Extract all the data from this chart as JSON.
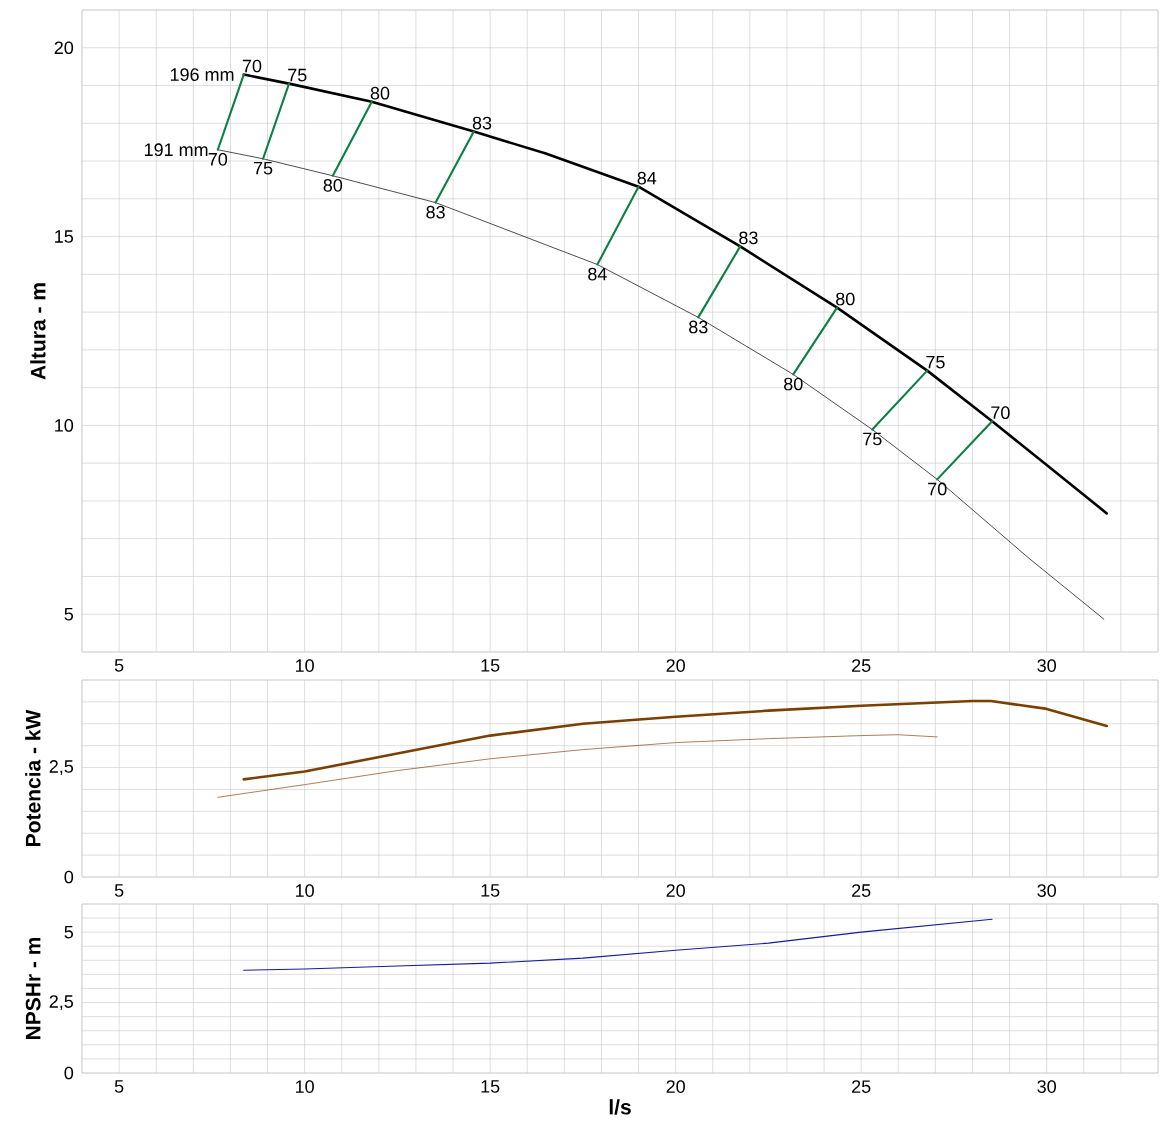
{
  "chart_data": [
    {
      "type": "line",
      "ylabel": "Altura - m",
      "grid": true,
      "xlim": [
        4,
        33
      ],
      "ylim": [
        4,
        21
      ],
      "xticks": [
        {
          "value": 4,
          "label": null
        },
        5,
        {
          "value": 6,
          "label": null
        },
        {
          "value": 7,
          "label": null
        },
        {
          "value": 8,
          "label": null
        },
        {
          "value": 9,
          "label": null
        },
        10,
        {
          "value": 11,
          "label": null
        },
        {
          "value": 12,
          "label": null
        },
        {
          "value": 13,
          "label": null
        },
        {
          "value": 14,
          "label": null
        },
        15,
        {
          "value": 16,
          "label": null
        },
        {
          "value": 17,
          "label": null
        },
        {
          "value": 18,
          "label": null
        },
        {
          "value": 19,
          "label": null
        },
        20,
        {
          "value": 21,
          "label": null
        },
        {
          "value": 22,
          "label": null
        },
        {
          "value": 23,
          "label": null
        },
        {
          "value": 24,
          "label": null
        },
        25,
        {
          "value": 26,
          "label": null
        },
        {
          "value": 27,
          "label": null
        },
        {
          "value": 28,
          "label": null
        },
        {
          "value": 29,
          "label": null
        },
        30,
        {
          "value": 31,
          "label": null
        },
        {
          "value": 32,
          "label": null
        },
        {
          "value": 33,
          "label": null
        }
      ],
      "yticks": [
        {
          "value": 4,
          "label": null
        },
        5,
        {
          "value": 6,
          "label": null
        },
        {
          "value": 7,
          "label": null
        },
        {
          "value": 8,
          "label": null
        },
        {
          "value": 9,
          "label": null
        },
        10,
        {
          "value": 11,
          "label": null
        },
        {
          "value": 12,
          "label": null
        },
        {
          "value": 13,
          "label": null
        },
        {
          "value": 14,
          "label": null
        },
        15,
        {
          "value": 16,
          "label": null
        },
        {
          "value": 17,
          "label": null
        },
        {
          "value": 18,
          "label": null
        },
        {
          "value": 19,
          "label": null
        },
        20,
        {
          "value": 21,
          "label": null
        }
      ],
      "series": [
        {
          "name": "196 mm",
          "color": "#000000",
          "x": [
            8.36,
            9.58,
            11.81,
            14.56,
            16.5,
            19.0,
            21.74,
            24.35,
            26.78,
            28.53,
            30.0,
            31.62
          ],
          "values": [
            19.29,
            19.05,
            18.57,
            17.78,
            17.2,
            16.32,
            14.74,
            13.12,
            11.45,
            10.11,
            8.95,
            7.67
          ]
        },
        {
          "name": "191 mm",
          "color": "#000000",
          "x": [
            7.66,
            8.88,
            10.76,
            13.53,
            17.89,
            20.61,
            23.17,
            25.3,
            27.05,
            29.5,
            31.54
          ],
          "values": [
            17.3,
            17.06,
            16.61,
            15.9,
            14.26,
            12.86,
            11.35,
            9.89,
            8.57,
            6.5,
            4.87
          ]
        },
        {
          "color": "#0a8043",
          "x": [
            7.66,
            8.36
          ],
          "values": [
            17.3,
            19.29
          ]
        },
        {
          "color": "#0a8043",
          "x": [
            8.88,
            9.58
          ],
          "values": [
            17.06,
            19.05
          ]
        },
        {
          "color": "#0a8043",
          "x": [
            10.76,
            11.81
          ],
          "values": [
            16.61,
            18.57
          ]
        },
        {
          "color": "#0a8043",
          "x": [
            13.53,
            14.56
          ],
          "values": [
            15.9,
            17.78
          ]
        },
        {
          "color": "#0a8043",
          "x": [
            17.89,
            19.0
          ],
          "values": [
            14.26,
            16.32
          ]
        },
        {
          "color": "#0a8043",
          "x": [
            20.61,
            21.74
          ],
          "values": [
            12.86,
            14.74
          ]
        },
        {
          "color": "#0a8043",
          "x": [
            23.17,
            24.35
          ],
          "values": [
            11.35,
            13.12
          ]
        },
        {
          "color": "#0a8043",
          "x": [
            25.3,
            26.78
          ],
          "values": [
            9.89,
            11.45
          ]
        },
        {
          "color": "#0a8043",
          "x": [
            27.05,
            28.53
          ],
          "values": [
            8.57,
            10.11
          ]
        }
      ],
      "annotations": [
        {
          "text": "70",
          "x": 7.66,
          "y": 17.3
        },
        {
          "text": "70",
          "x": 8.36,
          "y": 19.29
        },
        {
          "text": "75",
          "x": 8.88,
          "y": 17.06
        },
        {
          "text": "75",
          "x": 9.58,
          "y": 19.05
        },
        {
          "text": "80",
          "x": 10.76,
          "y": 16.61
        },
        {
          "text": "80",
          "x": 11.81,
          "y": 18.57
        },
        {
          "text": "83",
          "x": 13.53,
          "y": 15.9
        },
        {
          "text": "83",
          "x": 14.56,
          "y": 17.78
        },
        {
          "text": "84",
          "x": 17.89,
          "y": 14.26
        },
        {
          "text": "84",
          "x": 19.0,
          "y": 16.32
        },
        {
          "text": "83",
          "x": 20.61,
          "y": 12.86
        },
        {
          "text": "83",
          "x": 21.74,
          "y": 14.74
        },
        {
          "text": "80",
          "x": 23.17,
          "y": 11.35
        },
        {
          "text": "80",
          "x": 24.35,
          "y": 13.12
        },
        {
          "text": "75",
          "x": 25.3,
          "y": 9.89
        },
        {
          "text": "75",
          "x": 26.78,
          "y": 11.45
        },
        {
          "text": "70",
          "x": 27.05,
          "y": 8.57
        },
        {
          "text": "70",
          "x": 28.53,
          "y": 10.11
        }
      ]
    },
    {
      "type": "line",
      "ylabel": "Potencia - kW",
      "grid": true,
      "xlim": [
        4,
        33
      ],
      "ylim": [
        0,
        4.5
      ],
      "xticks": [
        {
          "value": 4,
          "label": null
        },
        5,
        {
          "value": 6,
          "label": null
        },
        {
          "value": 7,
          "label": null
        },
        {
          "value": 8,
          "label": null
        },
        {
          "value": 9,
          "label": null
        },
        10,
        {
          "value": 11,
          "label": null
        },
        {
          "value": 12,
          "label": null
        },
        {
          "value": 13,
          "label": null
        },
        {
          "value": 14,
          "label": null
        },
        15,
        {
          "value": 16,
          "label": null
        },
        {
          "value": 17,
          "label": null
        },
        {
          "value": 18,
          "label": null
        },
        {
          "value": 19,
          "label": null
        },
        20,
        {
          "value": 21,
          "label": null
        },
        {
          "value": 22,
          "label": null
        },
        {
          "value": 23,
          "label": null
        },
        {
          "value": 24,
          "label": null
        },
        25,
        {
          "value": 26,
          "label": null
        },
        {
          "value": 27,
          "label": null
        },
        {
          "value": 28,
          "label": null
        },
        {
          "value": 29,
          "label": null
        },
        30,
        {
          "value": 31,
          "label": null
        },
        {
          "value": 32,
          "label": null
        },
        {
          "value": 33,
          "label": null
        }
      ],
      "yticks": [
        0,
        {
          "value": 0.5,
          "label": null
        },
        {
          "value": 1,
          "label": null
        },
        {
          "value": 1.5,
          "label": null
        },
        {
          "value": 2,
          "label": null
        },
        {
          "value": 2.5,
          "label": "2,5"
        },
        {
          "value": 3,
          "label": null
        },
        {
          "value": 3.5,
          "label": null
        },
        {
          "value": 4,
          "label": null
        },
        {
          "value": 4.5,
          "label": null
        }
      ],
      "series": [
        {
          "color": "#7b3f00",
          "x": [
            8.36,
            10.0,
            12.5,
            15.0,
            17.5,
            20.0,
            22.5,
            25.0,
            28.0,
            28.5,
            30.0,
            31.62
          ],
          "values": [
            2.23,
            2.41,
            2.82,
            3.23,
            3.5,
            3.66,
            3.8,
            3.91,
            4.02,
            4.02,
            3.84,
            3.45
          ]
        },
        {
          "color": "#8b4513",
          "x": [
            7.66,
            10.0,
            12.5,
            15.0,
            17.5,
            20.0,
            22.5,
            25.0,
            26.0,
            27.05
          ],
          "values": [
            1.82,
            2.11,
            2.43,
            2.7,
            2.91,
            3.07,
            3.16,
            3.23,
            3.25,
            3.2
          ]
        }
      ]
    },
    {
      "type": "line",
      "ylabel": "NPSHr - m",
      "xlabel": "l/s",
      "grid": true,
      "xlim": [
        4,
        33
      ],
      "ylim": [
        0,
        6
      ],
      "xticks": [
        {
          "value": 4,
          "label": null
        },
        5,
        {
          "value": 6,
          "label": null
        },
        {
          "value": 7,
          "label": null
        },
        {
          "value": 8,
          "label": null
        },
        {
          "value": 9,
          "label": null
        },
        10,
        {
          "value": 11,
          "label": null
        },
        {
          "value": 12,
          "label": null
        },
        {
          "value": 13,
          "label": null
        },
        {
          "value": 14,
          "label": null
        },
        15,
        {
          "value": 16,
          "label": null
        },
        {
          "value": 17,
          "label": null
        },
        {
          "value": 18,
          "label": null
        },
        {
          "value": 19,
          "label": null
        },
        20,
        {
          "value": 21,
          "label": null
        },
        {
          "value": 22,
          "label": null
        },
        {
          "value": 23,
          "label": null
        },
        {
          "value": 24,
          "label": null
        },
        25,
        {
          "value": 26,
          "label": null
        },
        {
          "value": 27,
          "label": null
        },
        {
          "value": 28,
          "label": null
        },
        {
          "value": 29,
          "label": null
        },
        30,
        {
          "value": 31,
          "label": null
        },
        {
          "value": 32,
          "label": null
        },
        {
          "value": 33,
          "label": null
        }
      ],
      "yticks": [
        0,
        {
          "value": 0.5,
          "label": null
        },
        {
          "value": 1,
          "label": null
        },
        {
          "value": 1.5,
          "label": null
        },
        {
          "value": 2,
          "label": null
        },
        {
          "value": 2.5,
          "label": "2,5"
        },
        {
          "value": 3,
          "label": null
        },
        {
          "value": 3.5,
          "label": null
        },
        {
          "value": 4,
          "label": null
        },
        {
          "value": 4.5,
          "label": null
        },
        5,
        {
          "value": 5.5,
          "label": null
        },
        {
          "value": 6,
          "label": null
        }
      ],
      "series": [
        {
          "color": "#1a1a99",
          "x": [
            8.36,
            10.0,
            12.5,
            15.0,
            17.5,
            20.0,
            22.5,
            25.0,
            28.53
          ],
          "values": [
            3.65,
            3.69,
            3.8,
            3.9,
            4.08,
            4.36,
            4.61,
            5.0,
            5.46
          ]
        }
      ]
    }
  ]
}
